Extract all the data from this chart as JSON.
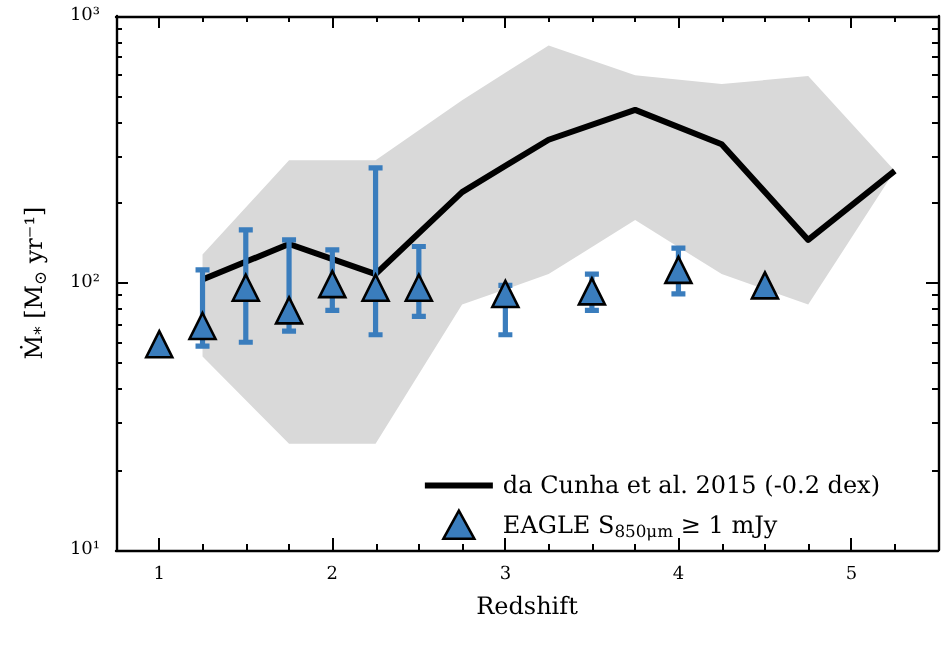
{
  "chart_data": {
    "type": "line",
    "xlabel": "Redshift",
    "ylabel": "Ṁ$_{*}$ [M$_{⊙}$ yr⁻¹]",
    "xlim": [
      0.75,
      5.5
    ],
    "xticks": [
      1,
      2,
      3,
      4,
      5
    ],
    "ylim": [
      10,
      1000
    ],
    "yticks": [
      {
        "value": 10,
        "label": "10¹"
      },
      {
        "value": 100,
        "label": "10²"
      },
      {
        "value": 1000,
        "label": "10³"
      }
    ],
    "log": "y",
    "grid": false,
    "legend": "bottom right",
    "series": [
      {
        "name": "da Cunha et al. 2015 (-0.2 dex)",
        "color": "#000000",
        "line_style": "solid",
        "marker": "none",
        "x": [
          1.25,
          1.75,
          2.25,
          2.75,
          3.25,
          3.75,
          4.25,
          4.75,
          5.25
        ],
        "values": [
          103,
          140,
          108,
          219,
          344,
          445,
          331,
          145,
          263
        ],
        "lower": [
          53,
          25,
          25,
          83,
          108,
          172,
          108,
          83,
          263
        ],
        "upper": [
          128,
          288,
          288,
          484,
          776,
          600,
          556,
          596,
          263
        ]
      },
      {
        "name": "EAGLE S$_{850μm}$ ≥ 1 mJy",
        "type": "scatter",
        "color": "#3a7dbd",
        "marker": "triangle",
        "x": [
          1,
          1.25,
          1.5,
          1.75,
          2,
          2.25,
          2.5,
          3,
          3.5,
          4,
          4.5
        ],
        "values": [
          59,
          69,
          96,
          79,
          99,
          96,
          96,
          91,
          93,
          112,
          98
        ],
        "errors": [
          null,
          [
            58,
            112
          ],
          [
            60,
            158
          ],
          [
            66,
            145
          ],
          [
            79,
            133
          ],
          [
            64,
            270
          ],
          [
            75,
            137
          ],
          [
            64,
            98
          ],
          [
            79,
            108
          ],
          [
            91,
            135
          ],
          null
        ]
      }
    ]
  }
}
